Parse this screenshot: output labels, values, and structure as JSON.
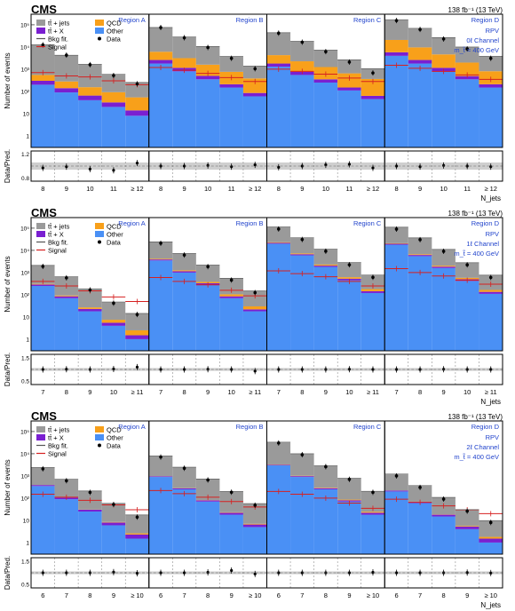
{
  "legend_labels": {
    "ttjets": "tt̄ + jets",
    "ttx": "tt̄ + X",
    "bkgfit": "Bkg fit.",
    "signal": "Signal",
    "qcd": "QCD",
    "other": "Other",
    "data": "Data"
  },
  "colors": {
    "ttjets": "#9a9a9a",
    "ttx": "#7a1fd1",
    "qcd": "#f8a01a",
    "other": "#4a90f5",
    "signal": "#d62020",
    "region_label": "#2244cc",
    "band": "#cfcfcf"
  },
  "chart_data": [
    {
      "type": "bar",
      "cms_label": "CMS",
      "lumi": "138 fb⁻¹ (13 TeV)",
      "ylabel": "Number of events",
      "ratio_ylabel": "Data/Pred.",
      "xlabel": "N_jets",
      "y_scale": "log",
      "ylim": [
        0.3,
        300000
      ],
      "y_ticks": [
        "1",
        "10",
        "10²",
        "10³",
        "10⁴",
        "10⁵"
      ],
      "ratio_ylim": [
        0.75,
        1.25
      ],
      "ratio_ticks": [
        "1.2",
        "0.8"
      ],
      "regions": [
        "Region A",
        "Region B",
        "Region C",
        "Region D"
      ],
      "info": [
        "RPV",
        "0ℓ Channel",
        "m_t̃ = 400 GeV"
      ],
      "categories": [
        "8",
        "9",
        "10",
        "11",
        "≥ 12"
      ],
      "series": {
        "ttjets": [
          [
            12000,
            4000,
            1500,
            500,
            200
          ],
          [
            70000,
            25000,
            9000,
            3000,
            1000
          ],
          [
            40000,
            16000,
            6000,
            2000,
            700
          ],
          [
            150000,
            60000,
            22000,
            8000,
            3000
          ]
        ],
        "qcd": [
          [
            250,
            140,
            90,
            60,
            40
          ],
          [
            3500,
            2000,
            1100,
            550,
            300
          ],
          [
            2500,
            1500,
            900,
            500,
            300
          ],
          [
            15000,
            7000,
            3500,
            1500,
            600
          ]
        ],
        "ttx": [
          [
            100,
            50,
            25,
            12,
            6
          ],
          [
            800,
            350,
            150,
            60,
            25
          ],
          [
            500,
            220,
            100,
            40,
            18
          ],
          [
            1800,
            800,
            350,
            140,
            60
          ]
        ],
        "other": [
          [
            200,
            90,
            40,
            20,
            8
          ],
          [
            1800,
            800,
            350,
            150,
            60
          ],
          [
            1300,
            550,
            250,
            110,
            45
          ],
          [
            4000,
            1800,
            800,
            350,
            150
          ]
        ],
        "signal": [
          [
            700,
            500,
            450,
            300,
            200
          ],
          [
            1200,
            900,
            650,
            420,
            280
          ],
          [
            1000,
            800,
            600,
            400,
            280
          ],
          [
            1500,
            1100,
            800,
            550,
            350
          ]
        ],
        "data": [
          [
            12500,
            4300,
            1600,
            520,
            220
          ],
          [
            75000,
            26000,
            9500,
            3100,
            1050
          ],
          [
            42000,
            16500,
            6200,
            2100,
            680
          ],
          [
            155000,
            62000,
            23000,
            8200,
            3100
          ]
        ],
        "ratio": [
          [
            0.97,
            0.99,
            0.95,
            0.93,
            1.05
          ],
          [
            1.0,
            1.0,
            1.01,
            0.99,
            1.02
          ],
          [
            0.98,
            1.0,
            1.02,
            1.03,
            0.97
          ],
          [
            1.0,
            0.99,
            1.01,
            1.0,
            0.99
          ]
        ]
      }
    },
    {
      "type": "bar",
      "cms_label": "CMS",
      "lumi": "138 fb⁻¹ (13 TeV)",
      "ylabel": "Number of events",
      "ratio_ylabel": "Data/Pred.",
      "xlabel": "N_jets",
      "y_scale": "log",
      "ylim": [
        0.3,
        300000
      ],
      "y_ticks": [
        "1",
        "10",
        "10²",
        "10³",
        "10⁴",
        "10⁵"
      ],
      "ratio_ylim": [
        0.35,
        1.65
      ],
      "ratio_ticks": [
        "1.5",
        "0.5"
      ],
      "regions": [
        "Region A",
        "Region B",
        "Region C",
        "Region D"
      ],
      "info": [
        "RPV",
        "1ℓ Channel",
        "m_t̃ = 400 GeV"
      ],
      "categories": [
        "7",
        "8",
        "9",
        "10",
        "≥ 11"
      ],
      "series": {
        "ttjets": [
          [
            1800,
            550,
            160,
            40,
            12
          ],
          [
            20000,
            6000,
            1800,
            450,
            120
          ],
          [
            90000,
            30000,
            9000,
            2200,
            600
          ],
          [
            90000,
            30000,
            9000,
            2200,
            600
          ]
        ],
        "qcd": [
          [
            20,
            8,
            4,
            2,
            1
          ],
          [
            300,
            120,
            50,
            20,
            8
          ],
          [
            1500,
            600,
            250,
            90,
            35
          ],
          [
            1200,
            500,
            200,
            80,
            30
          ]
        ],
        "ttx": [
          [
            40,
            15,
            5,
            1.5,
            0.5
          ],
          [
            400,
            150,
            50,
            15,
            4
          ],
          [
            1800,
            700,
            250,
            80,
            25
          ],
          [
            1800,
            700,
            250,
            80,
            25
          ]
        ],
        "other": [
          [
            250,
            70,
            18,
            4,
            1
          ],
          [
            3500,
            1000,
            280,
            70,
            18
          ],
          [
            20000,
            6000,
            1800,
            450,
            120
          ],
          [
            18000,
            5500,
            1600,
            420,
            110
          ]
        ],
        "signal": [
          [
            400,
            250,
            150,
            80,
            50
          ],
          [
            600,
            400,
            280,
            160,
            90
          ],
          [
            1200,
            900,
            650,
            400,
            250
          ],
          [
            1500,
            1000,
            700,
            450,
            300
          ]
        ],
        "data": [
          [
            1900,
            580,
            165,
            42,
            13
          ],
          [
            21000,
            6200,
            1850,
            460,
            125
          ],
          [
            92000,
            31000,
            9200,
            2250,
            610
          ],
          [
            91000,
            30500,
            9100,
            2230,
            605
          ]
        ],
        "ratio": [
          [
            1.0,
            1.01,
            1.0,
            1.02,
            1.1
          ],
          [
            1.0,
            1.0,
            1.01,
            1.0,
            0.93
          ],
          [
            1.0,
            1.0,
            1.0,
            1.01,
            1.0
          ],
          [
            1.0,
            1.0,
            1.01,
            1.0,
            1.0
          ]
        ]
      }
    },
    {
      "type": "bar",
      "cms_label": "CMS",
      "lumi": "138 fb⁻¹ (13 TeV)",
      "ylabel": "Number of events",
      "ratio_ylabel": "Data/Pred.",
      "xlabel": "N_jets",
      "y_scale": "log",
      "ylim": [
        0.3,
        300000
      ],
      "y_ticks": [
        "1",
        "10",
        "10²",
        "10³",
        "10⁴",
        "10⁵"
      ],
      "ratio_ylim": [
        0.35,
        1.65
      ],
      "ratio_ticks": [
        "1.5",
        "0.5"
      ],
      "regions": [
        "Region A",
        "Region B",
        "Region C",
        "Region D"
      ],
      "info": [
        "RPV",
        "2ℓ Channel",
        "m_t̃ = 400 GeV"
      ],
      "categories": [
        "6",
        "7",
        "8",
        "9",
        "≥ 10"
      ],
      "series": {
        "ttjets": [
          [
            2000,
            600,
            180,
            50,
            15
          ],
          [
            7000,
            2200,
            650,
            180,
            50
          ],
          [
            30000,
            9000,
            2600,
            700,
            180
          ],
          [
            1000,
            300,
            90,
            25,
            8
          ]
        ],
        "qcd": [
          [
            2,
            1,
            0.6,
            0.4,
            0.3
          ],
          [
            10,
            5,
            2,
            1,
            0.5
          ],
          [
            100,
            40,
            15,
            6,
            2.5
          ],
          [
            2,
            1,
            0.6,
            0.4,
            0.3
          ]
        ],
        "ttx": [
          [
            40,
            15,
            5,
            2,
            0.8
          ],
          [
            60,
            25,
            10,
            4,
            1.5
          ],
          [
            200,
            80,
            30,
            10,
            4
          ],
          [
            20,
            8,
            3,
            1.2,
            0.5
          ]
        ],
        "other": [
          [
            350,
            90,
            25,
            6,
            1.5
          ],
          [
            900,
            250,
            70,
            18,
            5
          ],
          [
            3000,
            900,
            250,
            70,
            18
          ],
          [
            200,
            60,
            15,
            4,
            1
          ]
        ],
        "signal": [
          [
            150,
            110,
            80,
            50,
            30
          ],
          [
            220,
            160,
            110,
            70,
            40
          ],
          [
            200,
            150,
            100,
            60,
            35
          ],
          [
            90,
            65,
            45,
            30,
            20
          ]
        ],
        "data": [
          [
            2100,
            610,
            182,
            52,
            14
          ],
          [
            7100,
            2230,
            660,
            185,
            48
          ],
          [
            30500,
            9100,
            2620,
            705,
            182
          ],
          [
            1010,
            305,
            91,
            26,
            8
          ]
        ],
        "ratio": [
          [
            1.0,
            1.0,
            1.0,
            1.03,
            0.98
          ],
          [
            1.0,
            1.0,
            1.02,
            1.1,
            0.95
          ],
          [
            1.0,
            1.0,
            1.0,
            1.0,
            1.02
          ],
          [
            1.0,
            1.0,
            1.0,
            1.01,
            0.99
          ]
        ]
      }
    }
  ]
}
